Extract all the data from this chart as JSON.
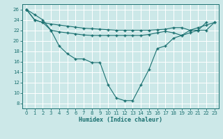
{
  "xlabel": "Humidex (Indice chaleur)",
  "bg_color": "#cce8e8",
  "line_color": "#1a7070",
  "grid_color": "#ffffff",
  "xlim": [
    -0.5,
    23.5
  ],
  "ylim": [
    7,
    27
  ],
  "yticks": [
    8,
    10,
    12,
    14,
    16,
    18,
    20,
    22,
    24,
    26
  ],
  "xticks": [
    0,
    1,
    2,
    3,
    4,
    5,
    6,
    7,
    8,
    9,
    10,
    11,
    12,
    13,
    14,
    15,
    16,
    17,
    18,
    19,
    20,
    21,
    22,
    23
  ],
  "line1_x": [
    0,
    1,
    2,
    3,
    4,
    5,
    6,
    7,
    8,
    9,
    10,
    11,
    12,
    13,
    14,
    15,
    16,
    17,
    18,
    19,
    20,
    21,
    22
  ],
  "line1_y": [
    26,
    25,
    24,
    22,
    19,
    17.5,
    16.5,
    16.5,
    15.8,
    15.8,
    11.5,
    9,
    8.5,
    8.5,
    11.5,
    14.5,
    18.5,
    19,
    20.5,
    21,
    22,
    22,
    23.5
  ],
  "line2_x": [
    0,
    1,
    2,
    3,
    4,
    5,
    6,
    7,
    8,
    9,
    10,
    11,
    12,
    13,
    14,
    15,
    16,
    17,
    18,
    19,
    20,
    21,
    22,
    23
  ],
  "line2_y": [
    26,
    24,
    23.5,
    23.2,
    23.0,
    22.8,
    22.6,
    22.4,
    22.3,
    22.2,
    22.1,
    22.0,
    22.0,
    22.0,
    22.0,
    22.0,
    22.1,
    22.2,
    22.5,
    22.5,
    22.0,
    22.5,
    23.0,
    23.5
  ],
  "line3_x": [
    0,
    1,
    2,
    3,
    4,
    5,
    6,
    7,
    8,
    9,
    10,
    11,
    12,
    13,
    14,
    15,
    16,
    17,
    18,
    19,
    20,
    21,
    22,
    23
  ],
  "line3_y": [
    26,
    24,
    23.5,
    22.0,
    21.7,
    21.5,
    21.3,
    21.1,
    21.0,
    21.0,
    21.0,
    21.0,
    21.0,
    21.0,
    21.0,
    21.2,
    21.5,
    21.8,
    21.5,
    21.0,
    21.5,
    22.0,
    22.0,
    23.5
  ]
}
